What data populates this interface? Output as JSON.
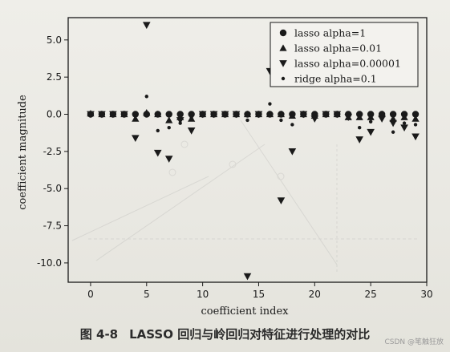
{
  "caption": {
    "figure_number": "图 4-8",
    "text": "LASSO 回归与岭回归对特征进行处理的对比"
  },
  "watermark": "CSDN @笔触狂放",
  "chart_data": {
    "type": "scatter",
    "xlabel": "coefficient index",
    "ylabel": "coefficient magnitude",
    "xlim": [
      -2,
      30
    ],
    "ylim": [
      -11.3,
      6.5
    ],
    "xticks": [
      0,
      5,
      10,
      15,
      20,
      25,
      30
    ],
    "yticks": [
      -10.0,
      -7.5,
      -5.0,
      -2.5,
      0.0,
      2.5,
      5.0
    ],
    "ytick_labels": [
      "-10.0",
      "-7.5",
      "-5.0",
      "-2.5",
      "0.0",
      "2.5",
      "5.0"
    ],
    "grid": false,
    "legend_position": "top-right",
    "series": [
      {
        "name": "lasso alpha=1",
        "marker": "circle",
        "color": "#1a1a1a",
        "x": [
          0,
          1,
          2,
          3,
          4,
          5,
          6,
          7,
          8,
          9,
          10,
          11,
          12,
          13,
          14,
          15,
          16,
          17,
          18,
          19,
          20,
          21,
          22,
          23,
          24,
          25,
          26,
          27,
          28,
          29
        ],
        "y": [
          0,
          0,
          0,
          0,
          0,
          0,
          0,
          0,
          0,
          0,
          0,
          0,
          0,
          0,
          0,
          0,
          0,
          0,
          0,
          0,
          0,
          0,
          0,
          0,
          0,
          0,
          0,
          0,
          0,
          0
        ]
      },
      {
        "name": "lasso alpha=0.01",
        "marker": "triangle-up",
        "color": "#1a1a1a",
        "x": [
          0,
          1,
          2,
          3,
          4,
          5,
          6,
          7,
          8,
          9,
          10,
          11,
          12,
          13,
          14,
          15,
          16,
          17,
          18,
          19,
          20,
          21,
          22,
          23,
          24,
          25,
          26,
          27,
          28,
          29
        ],
        "y": [
          0.05,
          0,
          0,
          0,
          -0.3,
          0.1,
          0,
          -0.4,
          -0.2,
          -0.3,
          0,
          0,
          0,
          0,
          0,
          0,
          0,
          0,
          -0.1,
          0,
          -0.1,
          0,
          0,
          -0.2,
          -0.2,
          -0.2,
          0,
          -0.3,
          -0.2,
          -0.3
        ]
      },
      {
        "name": "lasso alpha=0.00001",
        "marker": "triangle-down",
        "color": "#1a1a1a",
        "x": [
          0,
          1,
          2,
          3,
          4,
          5,
          6,
          7,
          8,
          9,
          10,
          11,
          12,
          13,
          14,
          15,
          16,
          17,
          18,
          19,
          20,
          21,
          22,
          23,
          24,
          25,
          26,
          27,
          28,
          29
        ],
        "y": [
          0,
          0,
          0,
          0,
          -1.6,
          6.0,
          -2.6,
          -3.0,
          -0.4,
          -1.1,
          0,
          0,
          0,
          0,
          -10.9,
          0,
          2.9,
          -5.8,
          -2.5,
          0,
          -0.3,
          0,
          0,
          -0.2,
          -1.7,
          -1.2,
          -0.3,
          -0.6,
          -0.9,
          -1.5
        ]
      },
      {
        "name": "ridge alpha=0.1",
        "marker": "dot",
        "color": "#1a1a1a",
        "x": [
          0,
          1,
          2,
          3,
          4,
          5,
          6,
          7,
          8,
          9,
          10,
          11,
          12,
          13,
          14,
          15,
          16,
          17,
          18,
          19,
          20,
          21,
          22,
          23,
          24,
          25,
          26,
          27,
          28,
          29
        ],
        "y": [
          0.1,
          0.1,
          0,
          0,
          -0.1,
          1.2,
          -1.1,
          -0.9,
          -0.6,
          -0.2,
          0,
          0,
          0,
          0,
          -0.4,
          0,
          0.7,
          -0.4,
          -0.7,
          0,
          -0.2,
          0,
          0,
          -0.1,
          -0.9,
          -0.5,
          -0.2,
          -1.2,
          -0.6,
          -0.7
        ]
      }
    ]
  }
}
